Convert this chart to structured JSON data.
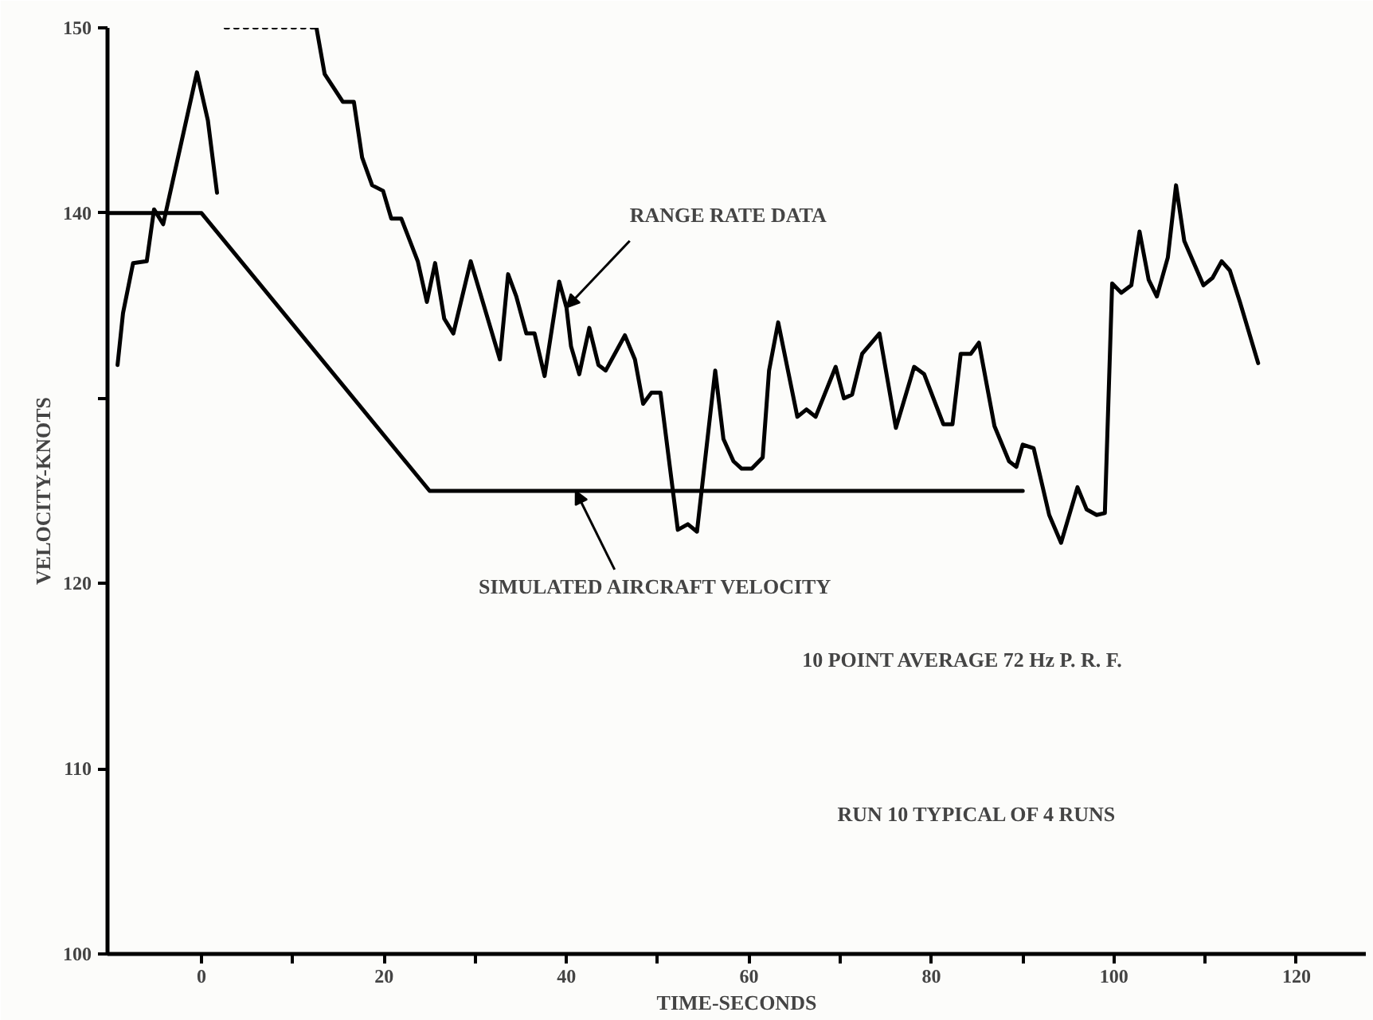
{
  "chart_data": {
    "type": "line",
    "xlabel": "TIME-SECONDS",
    "ylabel": "VELOCITY-KNOTS",
    "xlim": [
      -10.3,
      127.6
    ],
    "ylim": [
      100,
      150
    ],
    "xticks": [
      0,
      {
        "value": 10,
        "label": null
      },
      20,
      {
        "value": 30,
        "label": null
      },
      40,
      {
        "value": 50,
        "label": null
      },
      60,
      {
        "value": 70,
        "label": null
      },
      80,
      {
        "value": 90,
        "label": null
      },
      100,
      {
        "value": 110,
        "label": null
      },
      120
    ],
    "yticks": [
      100,
      110,
      120,
      {
        "value": 130,
        "label": null
      },
      140,
      150
    ],
    "grid": false,
    "marker": "none",
    "series": [
      {
        "color": "#000000",
        "line_style": "solid",
        "x": [
          -9.2,
          -8.6,
          -7.5,
          -6.0,
          -5.2,
          -4.2,
          -0.5,
          0.7,
          1.7
        ],
        "values": [
          131.8,
          134.6,
          137.3,
          137.4,
          140.2,
          139.4,
          147.6,
          145.0,
          141.1
        ]
      },
      {
        "color": "#000000",
        "line_style": "dotted",
        "x": [
          2.6,
          12.6
        ],
        "values": [
          150,
          150
        ]
      },
      {
        "color": "#000000",
        "line_style": "solid",
        "x": [
          12.6,
          13.5,
          15.5,
          16.7,
          17.6,
          18.7,
          19.9,
          20.8,
          21.9,
          23.7,
          24.7,
          25.6,
          26.6,
          27.6,
          29.5,
          32.7,
          33.6,
          34.5,
          35.6,
          36.5,
          37.6,
          39.2,
          40.0,
          40.5,
          41.4,
          42.5,
          43.5,
          44.3,
          46.4,
          47.5,
          48.4,
          49.3,
          50.3,
          52.2,
          53.3,
          54.3,
          56.3,
          57.2,
          58.3,
          59.2,
          60.3,
          61.5,
          62.2,
          63.2,
          65.3,
          66.3,
          67.3,
          69.5,
          70.4,
          71.3,
          72.4,
          74.3,
          76.1,
          78.1,
          79.2,
          81.3,
          82.3,
          83.2,
          84.3,
          85.2,
          86.9,
          88.5,
          89.3,
          90.0,
          91.2,
          92.9,
          94.2,
          96.0,
          97.0,
          98.1,
          99.0,
          99.8,
          100.8,
          101.9,
          102.8,
          103.8,
          104.7,
          105.9,
          106.8,
          107.7,
          109.8,
          110.8,
          111.8,
          112.7,
          113.8,
          115.8
        ],
        "values": [
          150,
          147.5,
          146,
          146,
          143,
          141.5,
          141.2,
          139.7,
          139.7,
          137.4,
          135.2,
          137.3,
          134.3,
          133.5,
          137.4,
          132.1,
          136.7,
          135.5,
          133.5,
          133.5,
          131.2,
          136.3,
          134.9,
          132.8,
          131.3,
          133.8,
          131.8,
          131.5,
          133.4,
          132.1,
          129.7,
          130.3,
          130.3,
          122.9,
          123.2,
          122.8,
          131.5,
          127.8,
          126.6,
          126.2,
          126.2,
          126.8,
          131.5,
          134.1,
          129.0,
          129.4,
          129.0,
          131.7,
          130.0,
          130.2,
          132.4,
          133.5,
          128.4,
          131.7,
          131.3,
          128.6,
          128.6,
          132.4,
          132.4,
          133.0,
          128.5,
          126.6,
          126.3,
          127.5,
          127.3,
          123.7,
          122.2,
          125.2,
          124.0,
          123.7,
          123.8,
          136.2,
          135.7,
          136.1,
          139.0,
          136.4,
          135.5,
          137.6,
          141.5,
          138.5,
          136.1,
          136.5,
          137.4,
          136.9,
          135.2,
          131.9
        ]
      },
      {
        "color": "#000000",
        "line_style": "solid",
        "x": [
          -10.3,
          0,
          25,
          90
        ],
        "values": [
          140,
          140,
          125,
          125
        ]
      }
    ],
    "annotations": [
      {
        "text": "RANGE RATE DATA",
        "x": 40.0,
        "y": 134.9
      },
      {
        "text": "SIMULATED AIRCRAFT VELOCITY",
        "x": 41,
        "y": 125
      },
      "10 POINT AVERAGE   72 Hz P. R. F.",
      "RUN 10      TYPICAL OF 4 RUNS"
    ]
  }
}
